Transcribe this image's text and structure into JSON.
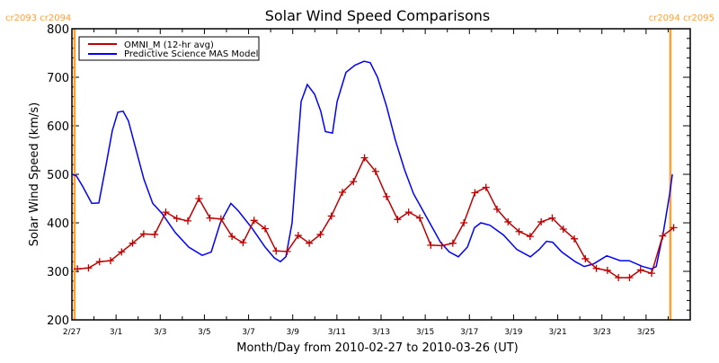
{
  "chart_data": {
    "type": "line",
    "title": "Solar Wind Speed Comparisons",
    "xlabel": "Month/Day from 2010-02-27 to 2010-03-26 (UT)",
    "ylabel": "Solar Wind Speed (km/s)",
    "x_units": "days since 2010-02-27 00:00 UT",
    "xlim": [
      0,
      28
    ],
    "ylim": [
      200,
      800
    ],
    "x_ticks": [
      {
        "day": 0,
        "label": "2/27"
      },
      {
        "day": 2,
        "label": "3/1"
      },
      {
        "day": 4,
        "label": "3/3"
      },
      {
        "day": 6,
        "label": "3/5"
      },
      {
        "day": 8,
        "label": "3/7"
      },
      {
        "day": 10,
        "label": "3/9"
      },
      {
        "day": 12,
        "label": "3/11"
      },
      {
        "day": 14,
        "label": "3/13"
      },
      {
        "day": 16,
        "label": "3/15"
      },
      {
        "day": 18,
        "label": "3/17"
      },
      {
        "day": 20,
        "label": "3/19"
      },
      {
        "day": 22,
        "label": "3/21"
      },
      {
        "day": 24,
        "label": "3/23"
      },
      {
        "day": 26,
        "label": "3/25"
      }
    ],
    "y_ticks": [
      "200",
      "300",
      "400",
      "500",
      "600",
      "700",
      "800"
    ],
    "legend": {
      "placement": "top-left",
      "entries": [
        "OMNI_M (12-hr avg)",
        "Predictive Science MAS Model"
      ]
    },
    "carrington_markers": [
      {
        "day": 0.12,
        "label": "cr2093 cr2094",
        "side": "left"
      },
      {
        "day": 27.1,
        "label": "cr2094 cr2095",
        "side": "right"
      }
    ],
    "series": [
      {
        "name": "OMNI_M (12-hr avg)",
        "color": "#c00000",
        "marker": "plus",
        "x_start": 0.25,
        "x_step": 0.5,
        "values": [
          305,
          307,
          320,
          322,
          340,
          358,
          377,
          376,
          422,
          409,
          404,
          450,
          410,
          408,
          372,
          359,
          405,
          388,
          342,
          341,
          374,
          358,
          376,
          414,
          463,
          485,
          534,
          506,
          454,
          407,
          422,
          410,
          354,
          353,
          358,
          400,
          462,
          473,
          428,
          402,
          382,
          372,
          402,
          410,
          387,
          367,
          326,
          306,
          302,
          287,
          287,
          303,
          296,
          373,
          390
        ]
      },
      {
        "name": "Predictive Science MAS Model",
        "color": "#0000ff",
        "points": [
          [
            0,
            500
          ],
          [
            0.2,
            497
          ],
          [
            0.49,
            475
          ],
          [
            0.9,
            440
          ],
          [
            1.22,
            441
          ],
          [
            1.55,
            520
          ],
          [
            1.83,
            590
          ],
          [
            2.08,
            628
          ],
          [
            2.32,
            630
          ],
          [
            2.56,
            610
          ],
          [
            2.85,
            560
          ],
          [
            3.26,
            490
          ],
          [
            3.66,
            440
          ],
          [
            4.07,
            420
          ],
          [
            4.68,
            380
          ],
          [
            5.29,
            350
          ],
          [
            5.9,
            333
          ],
          [
            6.31,
            340
          ],
          [
            6.72,
            400
          ],
          [
            7.2,
            440
          ],
          [
            7.53,
            425
          ],
          [
            8.14,
            390
          ],
          [
            8.75,
            350
          ],
          [
            9.16,
            328
          ],
          [
            9.44,
            320
          ],
          [
            9.69,
            330
          ],
          [
            9.97,
            400
          ],
          [
            10.18,
            530
          ],
          [
            10.38,
            650
          ],
          [
            10.66,
            685
          ],
          [
            10.99,
            665
          ],
          [
            11.27,
            630
          ],
          [
            11.48,
            588
          ],
          [
            11.8,
            585
          ],
          [
            12.01,
            650
          ],
          [
            12.41,
            710
          ],
          [
            12.82,
            725
          ],
          [
            13.23,
            733
          ],
          [
            13.51,
            730
          ],
          [
            13.84,
            700
          ],
          [
            14.25,
            640
          ],
          [
            14.65,
            570
          ],
          [
            15.06,
            510
          ],
          [
            15.47,
            460
          ],
          [
            16.08,
            410
          ],
          [
            16.69,
            360
          ],
          [
            17.09,
            340
          ],
          [
            17.5,
            330
          ],
          [
            17.91,
            350
          ],
          [
            18.23,
            390
          ],
          [
            18.52,
            400
          ],
          [
            18.93,
            395
          ],
          [
            19.54,
            375
          ],
          [
            20.15,
            345
          ],
          [
            20.76,
            330
          ],
          [
            21.16,
            345
          ],
          [
            21.49,
            362
          ],
          [
            21.77,
            360
          ],
          [
            22.18,
            340
          ],
          [
            22.79,
            320
          ],
          [
            23.2,
            310
          ],
          [
            23.61,
            315
          ],
          [
            24.22,
            332
          ],
          [
            24.83,
            322
          ],
          [
            25.23,
            322
          ],
          [
            25.84,
            310
          ],
          [
            26.25,
            305
          ],
          [
            26.46,
            310
          ],
          [
            26.78,
            380
          ],
          [
            27.07,
            460
          ],
          [
            27.19,
            500
          ]
        ]
      }
    ],
    "colors": {
      "axis": "#000000",
      "marker_line": "#ffa030"
    }
  }
}
